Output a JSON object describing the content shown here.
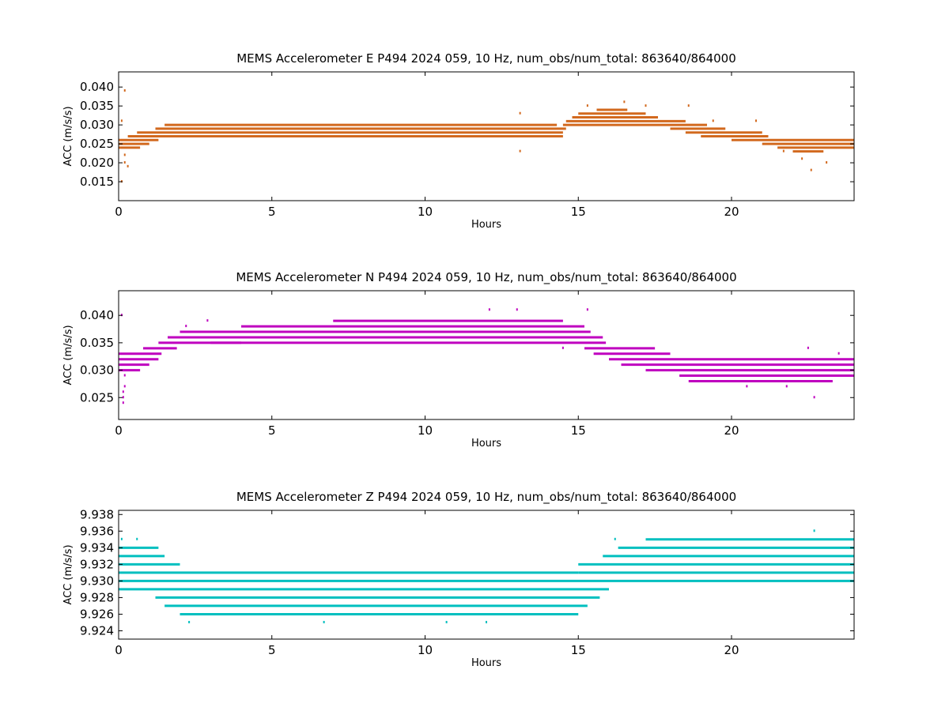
{
  "chart_data": [
    {
      "type": "scatter",
      "title": "MEMS Accelerometer E P494 2024 059, 10 Hz, num_obs/num_total: 863640/864000",
      "xlabel": "Hours",
      "ylabel": "ACC (m/s/s)",
      "xlim": [
        0,
        24
      ],
      "ylim": [
        0.01,
        0.044
      ],
      "xticks": [
        0,
        5,
        10,
        15,
        20
      ],
      "xtick_labels": [
        "0",
        "5",
        "10",
        "15",
        "20"
      ],
      "yticks": [
        0.015,
        0.02,
        0.025,
        0.03,
        0.035,
        0.04
      ],
      "ytick_labels": [
        "0.015",
        "0.020",
        "0.025",
        "0.030",
        "0.035",
        "0.040"
      ],
      "grid": false,
      "color": "#d2691e",
      "series": [
        {
          "bands": [
            {
              "y": 0.024,
              "x": [
                0,
                0.7
              ]
            },
            {
              "y": 0.025,
              "x": [
                0,
                1.0
              ]
            },
            {
              "y": 0.026,
              "x": [
                0,
                1.3
              ]
            },
            {
              "y": 0.027,
              "x": [
                0.3,
                1.6
              ]
            },
            {
              "y": 0.028,
              "x": [
                0.6,
                14.5
              ]
            },
            {
              "y": 0.029,
              "x": [
                1.2,
                14.6
              ]
            },
            {
              "y": 0.03,
              "x": [
                1.5,
                14.3
              ]
            },
            {
              "y": 0.027,
              "x": [
                1.5,
                14.5
              ]
            },
            {
              "y": 0.031,
              "x": [
                14.6,
                18.5
              ]
            },
            {
              "y": 0.032,
              "x": [
                14.8,
                17.6
              ]
            },
            {
              "y": 0.033,
              "x": [
                15.0,
                17.2
              ]
            },
            {
              "y": 0.034,
              "x": [
                15.6,
                16.6
              ]
            },
            {
              "y": 0.03,
              "x": [
                14.5,
                19.2
              ]
            },
            {
              "y": 0.029,
              "x": [
                18.0,
                19.8
              ]
            },
            {
              "y": 0.028,
              "x": [
                18.5,
                21.0
              ]
            },
            {
              "y": 0.027,
              "x": [
                19.0,
                21.2
              ]
            },
            {
              "y": 0.026,
              "x": [
                20.0,
                24
              ]
            },
            {
              "y": 0.025,
              "x": [
                21.0,
                24
              ]
            },
            {
              "y": 0.024,
              "x": [
                21.5,
                24
              ]
            },
            {
              "y": 0.023,
              "x": [
                22.0,
                23.0
              ]
            }
          ],
          "points": [
            {
              "x": 0.2,
              "y": 0.039
            },
            {
              "x": 0.1,
              "y": 0.031
            },
            {
              "x": 0.2,
              "y": 0.022
            },
            {
              "x": 0.2,
              "y": 0.02
            },
            {
              "x": 0.3,
              "y": 0.019
            },
            {
              "x": 0.1,
              "y": 0.015
            },
            {
              "x": 13.1,
              "y": 0.033
            },
            {
              "x": 13.1,
              "y": 0.023
            },
            {
              "x": 15.3,
              "y": 0.035
            },
            {
              "x": 16.5,
              "y": 0.036
            },
            {
              "x": 17.2,
              "y": 0.035
            },
            {
              "x": 18.6,
              "y": 0.035
            },
            {
              "x": 20.8,
              "y": 0.031
            },
            {
              "x": 22.6,
              "y": 0.018
            },
            {
              "x": 22.3,
              "y": 0.021
            },
            {
              "x": 23.1,
              "y": 0.02
            },
            {
              "x": 19.4,
              "y": 0.031
            },
            {
              "x": 21.7,
              "y": 0.023
            }
          ]
        }
      ]
    },
    {
      "type": "scatter",
      "title": "MEMS Accelerometer N P494 2024 059, 10 Hz, num_obs/num_total: 863640/864000",
      "xlabel": "Hours",
      "ylabel": "ACC (m/s/s)",
      "xlim": [
        0,
        24
      ],
      "ylim": [
        0.021,
        0.0445
      ],
      "xticks": [
        0,
        5,
        10,
        15,
        20
      ],
      "xtick_labels": [
        "0",
        "5",
        "10",
        "15",
        "20"
      ],
      "yticks": [
        0.025,
        0.03,
        0.035,
        0.04
      ],
      "ytick_labels": [
        "0.025",
        "0.030",
        "0.035",
        "0.040"
      ],
      "grid": false,
      "color": "#bf00bf",
      "series": [
        {
          "bands": [
            {
              "y": 0.03,
              "x": [
                0,
                0.7
              ]
            },
            {
              "y": 0.031,
              "x": [
                0,
                1.0
              ]
            },
            {
              "y": 0.032,
              "x": [
                0,
                1.3
              ]
            },
            {
              "y": 0.033,
              "x": [
                0,
                1.4
              ]
            },
            {
              "y": 0.034,
              "x": [
                0.8,
                1.9
              ]
            },
            {
              "y": 0.035,
              "x": [
                1.3,
                4.0
              ]
            },
            {
              "y": 0.036,
              "x": [
                1.6,
                15.8
              ]
            },
            {
              "y": 0.037,
              "x": [
                2.0,
                15.4
              ]
            },
            {
              "y": 0.038,
              "x": [
                4.0,
                15.2
              ]
            },
            {
              "y": 0.039,
              "x": [
                7.0,
                14.5
              ]
            },
            {
              "y": 0.035,
              "x": [
                3.0,
                15.9
              ]
            },
            {
              "y": 0.034,
              "x": [
                15.2,
                17.5
              ]
            },
            {
              "y": 0.033,
              "x": [
                15.5,
                18.0
              ]
            },
            {
              "y": 0.032,
              "x": [
                16.0,
                24
              ]
            },
            {
              "y": 0.031,
              "x": [
                16.4,
                24
              ]
            },
            {
              "y": 0.03,
              "x": [
                17.2,
                24
              ]
            },
            {
              "y": 0.029,
              "x": [
                18.3,
                24
              ]
            },
            {
              "y": 0.028,
              "x": [
                18.6,
                23.3
              ]
            }
          ],
          "points": [
            {
              "x": 0.1,
              "y": 0.04
            },
            {
              "x": 0.2,
              "y": 0.029
            },
            {
              "x": 0.2,
              "y": 0.027
            },
            {
              "x": 0.15,
              "y": 0.026
            },
            {
              "x": 0.15,
              "y": 0.025
            },
            {
              "x": 0.15,
              "y": 0.024
            },
            {
              "x": 2.2,
              "y": 0.038
            },
            {
              "x": 2.9,
              "y": 0.039
            },
            {
              "x": 12.1,
              "y": 0.041
            },
            {
              "x": 13.0,
              "y": 0.041
            },
            {
              "x": 14.5,
              "y": 0.034
            },
            {
              "x": 15.3,
              "y": 0.041
            },
            {
              "x": 22.7,
              "y": 0.025
            },
            {
              "x": 20.5,
              "y": 0.027
            },
            {
              "x": 21.8,
              "y": 0.027
            },
            {
              "x": 23.5,
              "y": 0.033
            },
            {
              "x": 22.5,
              "y": 0.034
            }
          ]
        }
      ]
    },
    {
      "type": "scatter",
      "title": "MEMS Accelerometer Z P494 2024 059, 10 Hz, num_obs/num_total: 863640/864000",
      "xlabel": "Hours",
      "ylabel": "ACC (m/s/s)",
      "xlim": [
        0,
        24
      ],
      "ylim": [
        9.923,
        9.9385
      ],
      "xticks": [
        0,
        5,
        10,
        15,
        20
      ],
      "xtick_labels": [
        "0",
        "5",
        "10",
        "15",
        "20"
      ],
      "yticks": [
        9.924,
        9.926,
        9.928,
        9.93,
        9.932,
        9.934,
        9.936,
        9.938
      ],
      "ytick_labels": [
        "9.924",
        "9.926",
        "9.928",
        "9.930",
        "9.932",
        "9.934",
        "9.936",
        "9.938"
      ],
      "grid": false,
      "color": "#00bfbf",
      "series": [
        {
          "bands": [
            {
              "y": 9.934,
              "x": [
                0,
                1.3
              ]
            },
            {
              "y": 9.933,
              "x": [
                0,
                1.5
              ]
            },
            {
              "y": 9.932,
              "x": [
                0,
                2.0
              ]
            },
            {
              "y": 9.931,
              "x": [
                0,
                15.0
              ]
            },
            {
              "y": 9.93,
              "x": [
                0,
                24
              ]
            },
            {
              "y": 9.929,
              "x": [
                0,
                16.0
              ]
            },
            {
              "y": 9.928,
              "x": [
                1.2,
                15.7
              ]
            },
            {
              "y": 9.927,
              "x": [
                1.5,
                15.3
              ]
            },
            {
              "y": 9.926,
              "x": [
                2.0,
                15.0
              ]
            },
            {
              "y": 9.931,
              "x": [
                15.0,
                24
              ]
            },
            {
              "y": 9.932,
              "x": [
                15.0,
                24
              ]
            },
            {
              "y": 9.933,
              "x": [
                15.8,
                24
              ]
            },
            {
              "y": 9.934,
              "x": [
                16.3,
                24
              ]
            },
            {
              "y": 9.935,
              "x": [
                17.2,
                24
              ]
            }
          ],
          "points": [
            {
              "x": 0.1,
              "y": 9.935
            },
            {
              "x": 0.6,
              "y": 9.935
            },
            {
              "x": 2.3,
              "y": 9.925
            },
            {
              "x": 6.7,
              "y": 9.925
            },
            {
              "x": 10.7,
              "y": 9.925
            },
            {
              "x": 12.0,
              "y": 9.925
            },
            {
              "x": 22.7,
              "y": 9.936
            },
            {
              "x": 16.2,
              "y": 9.935
            }
          ]
        }
      ]
    }
  ]
}
